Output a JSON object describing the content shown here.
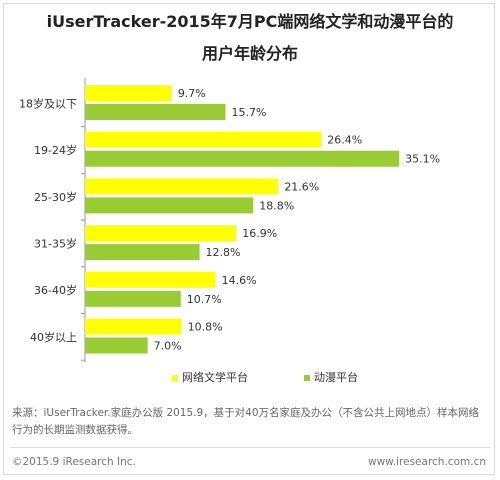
{
  "chart_data": {
    "type": "bar",
    "orientation": "horizontal",
    "title_lines": [
      "iUserTracker-2015年7月PC端网络文学和动漫平台的",
      "用户年龄分布"
    ],
    "categories": [
      "18岁及以下",
      "19-24岁",
      "25-30岁",
      "31-35岁",
      "36-40岁",
      "40岁以上"
    ],
    "series": [
      {
        "name": "网络文学平台",
        "color": "#ffff00",
        "values": [
          9.7,
          26.4,
          21.6,
          16.9,
          14.6,
          10.8
        ],
        "labels": [
          "9.7%",
          "26.4%",
          "21.6%",
          "16.9%",
          "14.6%",
          "10.8%"
        ]
      },
      {
        "name": "动漫平台",
        "color": "#99cc33",
        "values": [
          15.7,
          35.1,
          18.8,
          12.8,
          10.7,
          7.0
        ],
        "labels": [
          "15.7%",
          "35.1%",
          "18.8%",
          "12.8%",
          "10.7%",
          "7.0%"
        ]
      }
    ],
    "legend_position": "bottom"
  },
  "source_note": "来源：iUserTracker.家庭办公版 2015.9，基于对40万名家庭及办公（不含公共上网地点）样本网络行为的长期监测数据获得。",
  "footer": {
    "copyright": "©2015.9 iResearch Inc.",
    "url": "www.iresearch.com.cn"
  }
}
